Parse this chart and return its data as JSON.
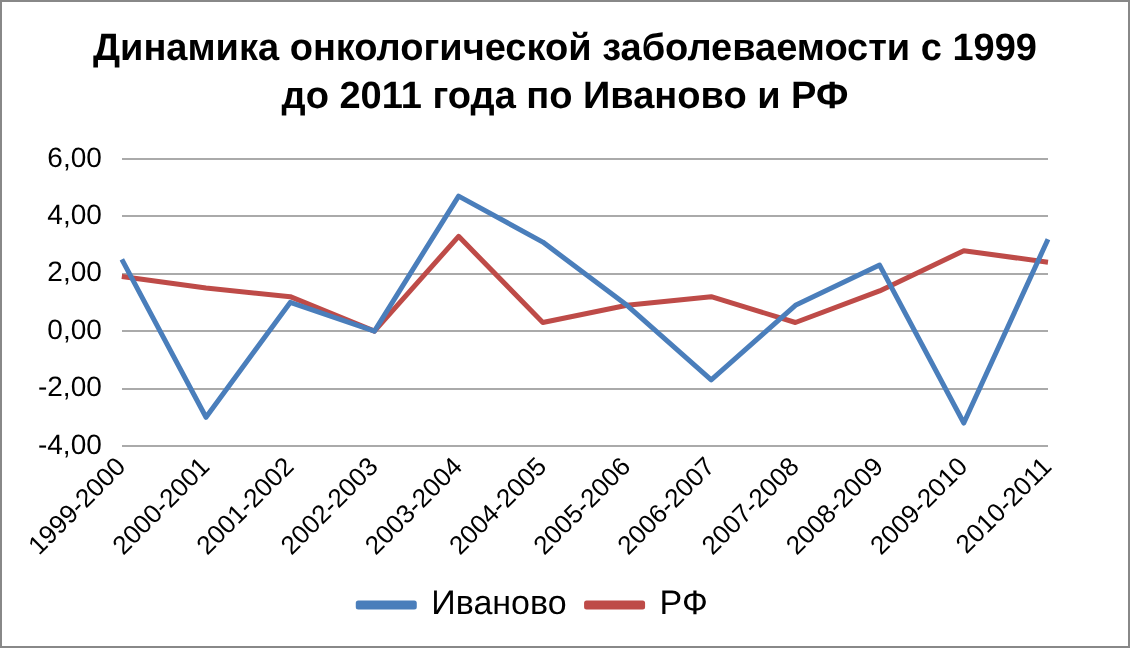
{
  "chart_data": {
    "type": "line",
    "title": "Динамика онкологической заболеваемости с 1999 до 2011 года по Иваново и РФ",
    "categories": [
      "1999-2000",
      "2000-2001",
      "2001-2002",
      "2002-2003",
      "2003-2004",
      "2004-2005",
      "2005-2006",
      "2006-2007",
      "2007-2008",
      "2008-2009",
      "2009-2010",
      "2010-2011"
    ],
    "series": [
      {
        "name": "Иваново",
        "color": "#4a7ebb",
        "values": [
          2.5,
          -3.0,
          1.0,
          0.0,
          4.7,
          3.1,
          0.9,
          -1.7,
          0.9,
          2.3,
          -3.2,
          3.2
        ]
      },
      {
        "name": "РФ",
        "color": "#be4b48",
        "values": [
          1.9,
          1.5,
          1.2,
          0.0,
          3.3,
          0.3,
          0.9,
          1.2,
          0.3,
          1.4,
          2.8,
          2.4
        ]
      }
    ],
    "ylim": [
      -4,
      6
    ],
    "yticks": [
      {
        "value": -4,
        "label": "-4,00"
      },
      {
        "value": -2,
        "label": "-2,00"
      },
      {
        "value": 0,
        "label": "0,00"
      },
      {
        "value": 2,
        "label": "2,00"
      },
      {
        "value": 4,
        "label": "4,00"
      },
      {
        "value": 6,
        "label": "6,00"
      }
    ],
    "grid": "y",
    "legend": "bottom",
    "marker": "none",
    "line_style": "solid"
  }
}
